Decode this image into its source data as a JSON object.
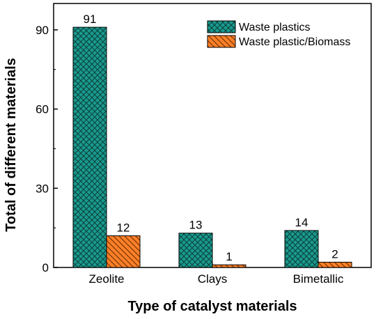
{
  "chart_data": {
    "type": "bar",
    "categories": [
      "Zeolite",
      "Clays",
      "Bimetallic"
    ],
    "series": [
      {
        "name": "Waste plastics",
        "values": [
          91,
          13,
          14
        ],
        "color": "#1a9a8e",
        "pattern": "crosshatch"
      },
      {
        "name": "Waste plastic/Biomass",
        "values": [
          12,
          1,
          2
        ],
        "color": "#ff7f27",
        "pattern": "diagonal"
      }
    ],
    "data_labels": true,
    "title": "",
    "xlabel": "Type of catalyst materials",
    "ylabel": "Total of different materials",
    "ylim": [
      0,
      100
    ],
    "yticks": [
      0,
      30,
      60,
      90
    ],
    "grid": false,
    "legend_position": "top-right"
  }
}
